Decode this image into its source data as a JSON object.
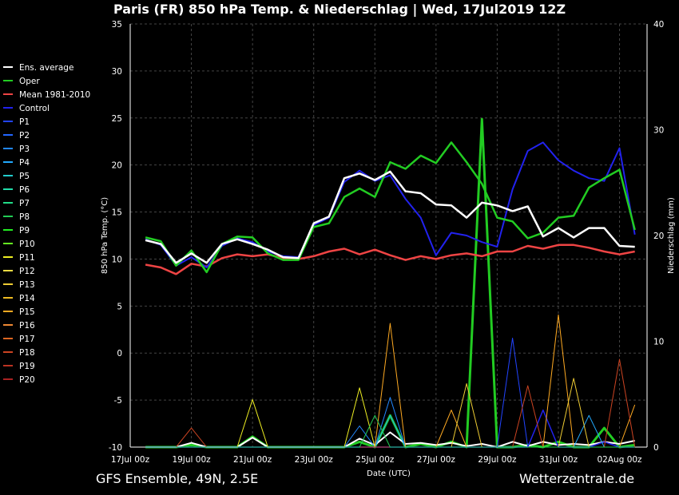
{
  "title": "Paris  (FR)  850 hPa Temp. & Niederschlag | Wed, 17Jul2019 12Z",
  "footer": {
    "left": "GFS Ensemble, 49N, 2.5E",
    "right": "Wetterzentrale.de"
  },
  "chart_data": {
    "type": "line",
    "xlabel": "Date (UTC)",
    "ylabel": "850 hPa Temp. (°C)",
    "y2label": "Niederschlag (mm)",
    "ylim": [
      -10,
      35
    ],
    "y2lim": [
      0,
      40
    ],
    "x_ticks": [
      "17Jul 00z",
      "19Jul 00z",
      "21Jul 00z",
      "23Jul 00z",
      "25Jul 00z",
      "27Jul 00z",
      "29Jul 00z",
      "31Jul 00z",
      "02Aug 00z"
    ],
    "y_ticks": [
      35,
      30,
      25,
      20,
      15,
      10,
      5,
      0,
      -5,
      -10
    ],
    "y2_ticks": [
      40,
      30,
      20,
      10,
      0
    ],
    "grid": true,
    "x_days": [
      0.5,
      1,
      1.5,
      2,
      2.5,
      3,
      3.5,
      4,
      4.5,
      5,
      5.5,
      6,
      6.5,
      7,
      7.5,
      8,
      8.5,
      9,
      9.5,
      10,
      10.5,
      11,
      11.5,
      12,
      12.5,
      13,
      13.5,
      14,
      14.5,
      15,
      15.5,
      16,
      16.5
    ],
    "series": [
      {
        "name": "Ens. average",
        "color": "#ffffff",
        "width": 2.5,
        "values": [
          12,
          11.6,
          9.6,
          10.6,
          9.6,
          11.6,
          12.1,
          11.6,
          11,
          10.2,
          10.1,
          13.8,
          14.5,
          18.6,
          19.1,
          18.4,
          19.3,
          17.2,
          17,
          15.8,
          15.7,
          14.4,
          16,
          15.7,
          15.1,
          15.6,
          12.4,
          13.3,
          12.3,
          13.3,
          13.3,
          11.4,
          11.3
        ]
      },
      {
        "name": "Oper",
        "color": "#22cc22",
        "width": 2.5,
        "values": [
          12.3,
          11.9,
          9.3,
          10.9,
          8.6,
          11.6,
          12.4,
          12.3,
          10.6,
          9.9,
          9.9,
          13.4,
          13.8,
          16.6,
          17.5,
          16.6,
          20.3,
          19.6,
          21,
          20.2,
          22.4,
          20.3,
          18,
          14.4,
          14,
          12.2,
          12.8,
          14.4,
          14.6,
          17.6,
          18.6,
          19.5,
          13.1
        ]
      },
      {
        "name": "Mean 1981-2010",
        "color": "#ee4444",
        "width": 2.5,
        "values": [
          9.4,
          9.1,
          8.4,
          9.5,
          9.2,
          10.1,
          10.5,
          10.3,
          10.5,
          10.1,
          10,
          10.3,
          10.8,
          11.1,
          10.5,
          11,
          10.4,
          9.9,
          10.3,
          10,
          10.4,
          10.6,
          10.3,
          10.8,
          10.8,
          11.4,
          11.1,
          11.5,
          11.5,
          11.2,
          10.8,
          10.5,
          10.8
        ]
      },
      {
        "name": "Control",
        "color": "#2222ee",
        "width": 2,
        "values": [
          12.1,
          11.5,
          9.3,
          10.2,
          9.1,
          11.4,
          12.2,
          11.8,
          10.8,
          10.3,
          10.2,
          13.6,
          14.4,
          18.2,
          19.4,
          18.3,
          18.9,
          16.4,
          14.4,
          10.4,
          12.8,
          12.5,
          11.8,
          11.3,
          17.4,
          21.5,
          22.4,
          20.5,
          19.4,
          18.6,
          18.3,
          21.8,
          12.6
        ]
      },
      {
        "name": "P1",
        "color": "#2244ff",
        "width": 1,
        "values": []
      },
      {
        "name": "P2",
        "color": "#2266ff",
        "width": 1,
        "values": []
      },
      {
        "name": "P3",
        "color": "#2288ff",
        "width": 1,
        "values": []
      },
      {
        "name": "P4",
        "color": "#22aaff",
        "width": 1,
        "values": []
      },
      {
        "name": "P5",
        "color": "#22cccc",
        "width": 1,
        "values": []
      },
      {
        "name": "P6",
        "color": "#22ddaa",
        "width": 1,
        "values": []
      },
      {
        "name": "P7",
        "color": "#22dd88",
        "width": 1,
        "values": []
      },
      {
        "name": "P8",
        "color": "#22cc55",
        "width": 1,
        "values": []
      },
      {
        "name": "P9",
        "color": "#22ee22",
        "width": 1,
        "values": []
      },
      {
        "name": "P10",
        "color": "#66ee22",
        "width": 1,
        "values": []
      },
      {
        "name": "P11",
        "color": "#eeee22",
        "width": 1,
        "values": []
      },
      {
        "name": "P12",
        "color": "#eedd44",
        "width": 1,
        "values": []
      },
      {
        "name": "P13",
        "color": "#eecc33",
        "width": 1,
        "values": []
      },
      {
        "name": "P14",
        "color": "#eebb22",
        "width": 1,
        "values": []
      },
      {
        "name": "P15",
        "color": "#ffaa22",
        "width": 1,
        "values": []
      },
      {
        "name": "P16",
        "color": "#ee8833",
        "width": 1,
        "values": []
      },
      {
        "name": "P17",
        "color": "#dd6622",
        "width": 1,
        "values": []
      },
      {
        "name": "P18",
        "color": "#cc4422",
        "width": 1,
        "values": []
      },
      {
        "name": "P19",
        "color": "#bb3322",
        "width": 1,
        "values": []
      },
      {
        "name": "P20",
        "color": "#aa2222",
        "width": 1,
        "values": []
      }
    ],
    "precip_series": [
      {
        "name": "Oper",
        "color": "#22cc22",
        "width": 3,
        "values": [
          0,
          0,
          0,
          0.2,
          0,
          0,
          0,
          1,
          0,
          0,
          0,
          0,
          0,
          0,
          0.5,
          0,
          3,
          0,
          0.3,
          0,
          0.5,
          0,
          31,
          0,
          0,
          0.2,
          0,
          0.5,
          0,
          0,
          1.8,
          0,
          0.2
        ]
      },
      {
        "name": "Ens. average",
        "color": "#ffffff",
        "width": 2,
        "values": [
          0,
          0,
          0,
          0.4,
          0,
          0,
          0,
          0.9,
          0,
          0,
          0,
          0,
          0,
          0,
          0.8,
          0.2,
          1.4,
          0.3,
          0.4,
          0.2,
          0.4,
          0.1,
          0.3,
          0,
          0.5,
          0.1,
          0.5,
          0.2,
          0.3,
          0.2,
          0.5,
          0.3,
          0.6
        ]
      },
      {
        "name": "Control",
        "color": "#2222ee",
        "width": 1.5,
        "values": [
          0,
          0,
          0,
          0,
          0,
          0,
          0,
          0,
          0,
          0,
          0,
          0,
          0,
          0,
          0,
          0,
          0,
          0,
          0,
          0,
          0,
          0,
          0,
          0,
          0,
          0,
          3.5,
          0,
          0,
          0,
          0.5,
          0,
          0
        ]
      },
      {
        "name": "P3",
        "color": "#2288ff",
        "width": 1,
        "values": [
          0,
          0,
          0,
          0,
          0,
          0,
          0,
          0,
          0,
          0,
          0,
          0,
          0,
          0,
          2,
          0,
          4.7,
          0,
          0,
          0,
          0,
          0,
          0,
          0,
          0,
          0,
          0,
          0,
          0,
          0,
          0,
          0,
          0
        ]
      },
      {
        "name": "P4",
        "color": "#22aaff",
        "width": 1,
        "values": [
          0,
          0,
          0,
          0,
          0,
          0,
          0,
          0,
          0,
          0,
          0,
          0,
          0,
          0,
          0,
          0,
          3,
          0,
          0,
          0,
          0,
          0,
          0,
          0,
          0,
          0,
          0,
          0,
          0,
          3,
          0,
          0,
          0
        ]
      },
      {
        "name": "P1",
        "color": "#2244ff",
        "width": 1,
        "values": [
          0,
          0,
          0,
          0,
          0,
          0,
          0,
          0,
          0,
          0,
          0,
          0,
          0,
          0,
          0,
          0,
          0,
          0,
          0,
          0,
          0,
          0,
          0,
          0,
          10.3,
          0,
          0,
          0,
          0,
          0,
          0,
          0,
          0
        ]
      },
      {
        "name": "P11",
        "color": "#eeee22",
        "width": 1,
        "values": [
          0,
          0,
          0,
          0,
          0,
          0,
          0,
          4.5,
          0,
          0,
          0,
          0,
          0,
          0,
          5.6,
          0,
          0,
          0,
          0,
          0,
          0,
          0,
          0,
          0,
          0,
          0,
          0,
          0,
          0,
          0,
          0,
          0,
          0
        ]
      },
      {
        "name": "P15",
        "color": "#ffaa22",
        "width": 1,
        "values": [
          0,
          0,
          0,
          0,
          0,
          0,
          0,
          0,
          0,
          0,
          0,
          0,
          0,
          0,
          0,
          0,
          11.7,
          0,
          0,
          0,
          3.5,
          0,
          0,
          0,
          0,
          0,
          0,
          12.5,
          0,
          0,
          0,
          0,
          4
        ]
      },
      {
        "name": "P13",
        "color": "#eecc33",
        "width": 1,
        "values": [
          0,
          0,
          0,
          0,
          0,
          0,
          0,
          0,
          0,
          0,
          0,
          0,
          0,
          0,
          0,
          0,
          0,
          0,
          0,
          0,
          0,
          6,
          0,
          0,
          0,
          0,
          0,
          0,
          6.5,
          0,
          0,
          0,
          0
        ]
      },
      {
        "name": "P18",
        "color": "#cc4422",
        "width": 1,
        "values": [
          0,
          0,
          0,
          1.8,
          0,
          0,
          0,
          0,
          0,
          0,
          0,
          0,
          0,
          0,
          0,
          0,
          0,
          0,
          0,
          0,
          0,
          0,
          0,
          0,
          0,
          5.8,
          0,
          0,
          0,
          0,
          0,
          8.3,
          0
        ]
      },
      {
        "name": "P8",
        "color": "#22cc55",
        "width": 1,
        "values": [
          0,
          0,
          0,
          0,
          0,
          0,
          0,
          0,
          0,
          0,
          0,
          0,
          0,
          0,
          0,
          3,
          0,
          0,
          0,
          0,
          0,
          0,
          0,
          0,
          0,
          0,
          0,
          0,
          0,
          0,
          0,
          0,
          0
        ]
      }
    ]
  }
}
